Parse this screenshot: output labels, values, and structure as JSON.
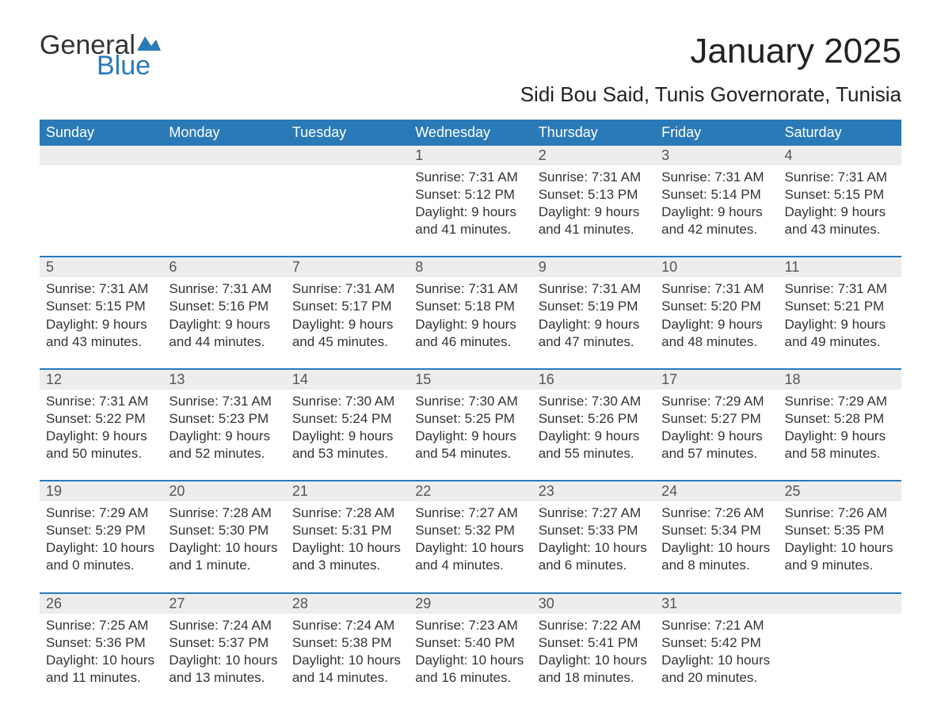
{
  "logo": {
    "general": "General",
    "blue": "Blue"
  },
  "title": "January 2025",
  "location": "Sidi Bou Said, Tunis Governorate, Tunisia",
  "weekdays": [
    "Sunday",
    "Monday",
    "Tuesday",
    "Wednesday",
    "Thursday",
    "Friday",
    "Saturday"
  ],
  "colors": {
    "header_bg": "#2a7ab8",
    "header_text": "#ffffff",
    "daynum_bg": "#ededed",
    "row_border": "#2a7ab8",
    "body_text": "#333333",
    "logo_blue": "#2a7ab8"
  },
  "typography": {
    "title_fontsize": 44,
    "location_fontsize": 26,
    "weekday_fontsize": 18,
    "cell_fontsize": 17
  },
  "weeks": [
    [
      null,
      null,
      null,
      {
        "day": "1",
        "sunrise": "Sunrise: 7:31 AM",
        "sunset": "Sunset: 5:12 PM",
        "daylight1": "Daylight: 9 hours",
        "daylight2": "and 41 minutes."
      },
      {
        "day": "2",
        "sunrise": "Sunrise: 7:31 AM",
        "sunset": "Sunset: 5:13 PM",
        "daylight1": "Daylight: 9 hours",
        "daylight2": "and 41 minutes."
      },
      {
        "day": "3",
        "sunrise": "Sunrise: 7:31 AM",
        "sunset": "Sunset: 5:14 PM",
        "daylight1": "Daylight: 9 hours",
        "daylight2": "and 42 minutes."
      },
      {
        "day": "4",
        "sunrise": "Sunrise: 7:31 AM",
        "sunset": "Sunset: 5:15 PM",
        "daylight1": "Daylight: 9 hours",
        "daylight2": "and 43 minutes."
      }
    ],
    [
      {
        "day": "5",
        "sunrise": "Sunrise: 7:31 AM",
        "sunset": "Sunset: 5:15 PM",
        "daylight1": "Daylight: 9 hours",
        "daylight2": "and 43 minutes."
      },
      {
        "day": "6",
        "sunrise": "Sunrise: 7:31 AM",
        "sunset": "Sunset: 5:16 PM",
        "daylight1": "Daylight: 9 hours",
        "daylight2": "and 44 minutes."
      },
      {
        "day": "7",
        "sunrise": "Sunrise: 7:31 AM",
        "sunset": "Sunset: 5:17 PM",
        "daylight1": "Daylight: 9 hours",
        "daylight2": "and 45 minutes."
      },
      {
        "day": "8",
        "sunrise": "Sunrise: 7:31 AM",
        "sunset": "Sunset: 5:18 PM",
        "daylight1": "Daylight: 9 hours",
        "daylight2": "and 46 minutes."
      },
      {
        "day": "9",
        "sunrise": "Sunrise: 7:31 AM",
        "sunset": "Sunset: 5:19 PM",
        "daylight1": "Daylight: 9 hours",
        "daylight2": "and 47 minutes."
      },
      {
        "day": "10",
        "sunrise": "Sunrise: 7:31 AM",
        "sunset": "Sunset: 5:20 PM",
        "daylight1": "Daylight: 9 hours",
        "daylight2": "and 48 minutes."
      },
      {
        "day": "11",
        "sunrise": "Sunrise: 7:31 AM",
        "sunset": "Sunset: 5:21 PM",
        "daylight1": "Daylight: 9 hours",
        "daylight2": "and 49 minutes."
      }
    ],
    [
      {
        "day": "12",
        "sunrise": "Sunrise: 7:31 AM",
        "sunset": "Sunset: 5:22 PM",
        "daylight1": "Daylight: 9 hours",
        "daylight2": "and 50 minutes."
      },
      {
        "day": "13",
        "sunrise": "Sunrise: 7:31 AM",
        "sunset": "Sunset: 5:23 PM",
        "daylight1": "Daylight: 9 hours",
        "daylight2": "and 52 minutes."
      },
      {
        "day": "14",
        "sunrise": "Sunrise: 7:30 AM",
        "sunset": "Sunset: 5:24 PM",
        "daylight1": "Daylight: 9 hours",
        "daylight2": "and 53 minutes."
      },
      {
        "day": "15",
        "sunrise": "Sunrise: 7:30 AM",
        "sunset": "Sunset: 5:25 PM",
        "daylight1": "Daylight: 9 hours",
        "daylight2": "and 54 minutes."
      },
      {
        "day": "16",
        "sunrise": "Sunrise: 7:30 AM",
        "sunset": "Sunset: 5:26 PM",
        "daylight1": "Daylight: 9 hours",
        "daylight2": "and 55 minutes."
      },
      {
        "day": "17",
        "sunrise": "Sunrise: 7:29 AM",
        "sunset": "Sunset: 5:27 PM",
        "daylight1": "Daylight: 9 hours",
        "daylight2": "and 57 minutes."
      },
      {
        "day": "18",
        "sunrise": "Sunrise: 7:29 AM",
        "sunset": "Sunset: 5:28 PM",
        "daylight1": "Daylight: 9 hours",
        "daylight2": "and 58 minutes."
      }
    ],
    [
      {
        "day": "19",
        "sunrise": "Sunrise: 7:29 AM",
        "sunset": "Sunset: 5:29 PM",
        "daylight1": "Daylight: 10 hours",
        "daylight2": "and 0 minutes."
      },
      {
        "day": "20",
        "sunrise": "Sunrise: 7:28 AM",
        "sunset": "Sunset: 5:30 PM",
        "daylight1": "Daylight: 10 hours",
        "daylight2": "and 1 minute."
      },
      {
        "day": "21",
        "sunrise": "Sunrise: 7:28 AM",
        "sunset": "Sunset: 5:31 PM",
        "daylight1": "Daylight: 10 hours",
        "daylight2": "and 3 minutes."
      },
      {
        "day": "22",
        "sunrise": "Sunrise: 7:27 AM",
        "sunset": "Sunset: 5:32 PM",
        "daylight1": "Daylight: 10 hours",
        "daylight2": "and 4 minutes."
      },
      {
        "day": "23",
        "sunrise": "Sunrise: 7:27 AM",
        "sunset": "Sunset: 5:33 PM",
        "daylight1": "Daylight: 10 hours",
        "daylight2": "and 6 minutes."
      },
      {
        "day": "24",
        "sunrise": "Sunrise: 7:26 AM",
        "sunset": "Sunset: 5:34 PM",
        "daylight1": "Daylight: 10 hours",
        "daylight2": "and 8 minutes."
      },
      {
        "day": "25",
        "sunrise": "Sunrise: 7:26 AM",
        "sunset": "Sunset: 5:35 PM",
        "daylight1": "Daylight: 10 hours",
        "daylight2": "and 9 minutes."
      }
    ],
    [
      {
        "day": "26",
        "sunrise": "Sunrise: 7:25 AM",
        "sunset": "Sunset: 5:36 PM",
        "daylight1": "Daylight: 10 hours",
        "daylight2": "and 11 minutes."
      },
      {
        "day": "27",
        "sunrise": "Sunrise: 7:24 AM",
        "sunset": "Sunset: 5:37 PM",
        "daylight1": "Daylight: 10 hours",
        "daylight2": "and 13 minutes."
      },
      {
        "day": "28",
        "sunrise": "Sunrise: 7:24 AM",
        "sunset": "Sunset: 5:38 PM",
        "daylight1": "Daylight: 10 hours",
        "daylight2": "and 14 minutes."
      },
      {
        "day": "29",
        "sunrise": "Sunrise: 7:23 AM",
        "sunset": "Sunset: 5:40 PM",
        "daylight1": "Daylight: 10 hours",
        "daylight2": "and 16 minutes."
      },
      {
        "day": "30",
        "sunrise": "Sunrise: 7:22 AM",
        "sunset": "Sunset: 5:41 PM",
        "daylight1": "Daylight: 10 hours",
        "daylight2": "and 18 minutes."
      },
      {
        "day": "31",
        "sunrise": "Sunrise: 7:21 AM",
        "sunset": "Sunset: 5:42 PM",
        "daylight1": "Daylight: 10 hours",
        "daylight2": "and 20 minutes."
      },
      null
    ]
  ]
}
